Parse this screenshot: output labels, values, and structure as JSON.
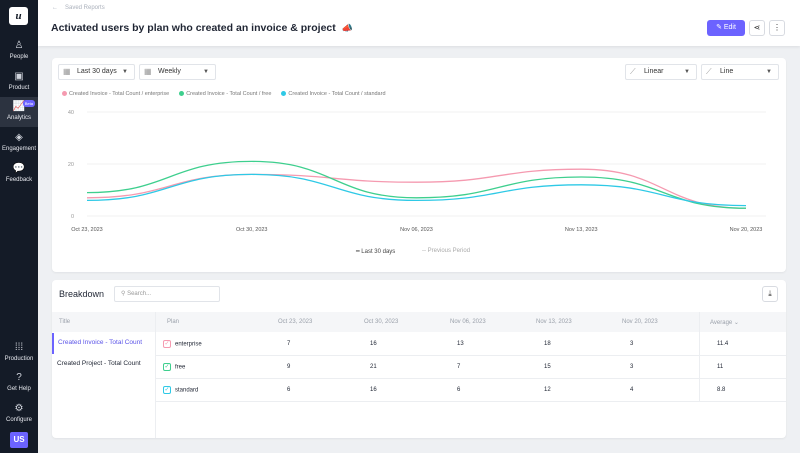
{
  "sidebar": {
    "items": [
      {
        "label": "People",
        "icon": "people-icon"
      },
      {
        "label": "Product",
        "icon": "product-icon"
      },
      {
        "label": "Analytics",
        "icon": "analytics-icon",
        "badge": "Beta",
        "active": true
      },
      {
        "label": "Engagement",
        "icon": "engagement-icon"
      },
      {
        "label": "Feedback",
        "icon": "feedback-icon"
      }
    ],
    "bottom": [
      {
        "label": "Production",
        "icon": "grid-icon"
      },
      {
        "label": "Get Help",
        "icon": "help-icon"
      },
      {
        "label": "Configure",
        "icon": "gear-icon"
      }
    ],
    "avatar": "US",
    "logo": "u"
  },
  "header": {
    "breadcrumb": "Saved Reports",
    "title": "Activated users by plan who created an invoice & project",
    "edit_label": "Edit"
  },
  "controls": {
    "range": "Last 30 days",
    "interval": "Weekly",
    "scale": "Linear",
    "chart_type": "Line"
  },
  "chart_data": {
    "type": "line",
    "x": [
      "Oct 23, 2023",
      "Oct 30, 2023",
      "Nov 06, 2023",
      "Nov 13, 2023",
      "Nov 20, 2023"
    ],
    "ylim": [
      0,
      40
    ],
    "yticks": [
      0,
      20,
      40
    ],
    "grid": true,
    "legend": "top-left",
    "series": [
      {
        "name": "Created Invoice - Total Count / enterprise",
        "color": "#f59ab0",
        "values": [
          7,
          16,
          13,
          18,
          3
        ]
      },
      {
        "name": "Created Invoice - Total Count / free",
        "color": "#3ecf8e",
        "values": [
          9,
          21,
          7,
          15,
          3
        ]
      },
      {
        "name": "Created Invoice - Total Count / standard",
        "color": "#2ec9e6",
        "values": [
          6,
          16,
          6,
          12,
          4
        ]
      }
    ],
    "period_legend": [
      "Last 30 days",
      "Previous Period"
    ]
  },
  "breakdown": {
    "title": "Breakdown",
    "search_placeholder": "Search...",
    "columns": {
      "title": "Title",
      "plan": "Plan",
      "dates": [
        "Oct 23, 2023",
        "Oct 30, 2023",
        "Nov 06, 2023",
        "Nov 13, 2023",
        "Nov 20, 2023"
      ],
      "average": "Average"
    },
    "titles": [
      "Created Invoice - Total Count",
      "Created Project - Total Count"
    ],
    "rows": [
      {
        "plan": "enterprise",
        "color": "#f59ab0",
        "values": [
          "7",
          "16",
          "13",
          "18",
          "3"
        ],
        "average": "11.4"
      },
      {
        "plan": "free",
        "color": "#3ecf8e",
        "values": [
          "9",
          "21",
          "7",
          "15",
          "3"
        ],
        "average": "11"
      },
      {
        "plan": "standard",
        "color": "#2ec9e6",
        "values": [
          "6",
          "16",
          "6",
          "12",
          "4"
        ],
        "average": "8.8"
      }
    ]
  }
}
